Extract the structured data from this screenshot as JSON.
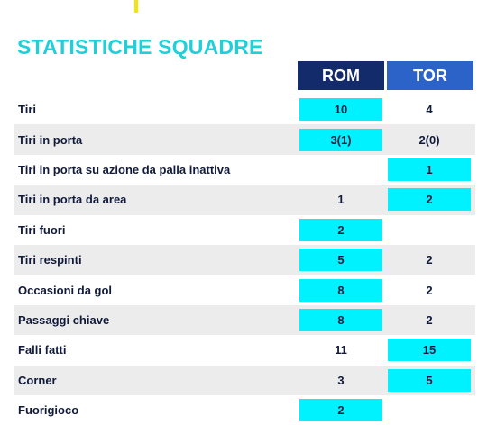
{
  "title": "STATISTICHE SQUADRE",
  "teams": {
    "home": "ROM",
    "away": "TOR"
  },
  "colors": {
    "title": "#1fd0d8",
    "home_header": "#132a6b",
    "away_header": "#2b63c9",
    "highlight": "#00f1ff",
    "accent": "#f5e30f",
    "row_alt": "#ececec"
  },
  "rows": [
    {
      "label": "Tiri",
      "home": "10",
      "away": "4",
      "leader": "home"
    },
    {
      "label": "Tiri in porta",
      "home": "3(1)",
      "away": "2(0)",
      "leader": "home"
    },
    {
      "label": "Tiri in porta su azione da palla inattiva",
      "home": "",
      "away": "1",
      "leader": "away"
    },
    {
      "label": "Tiri in porta da area",
      "home": "1",
      "away": "2",
      "leader": "away"
    },
    {
      "label": "Tiri fuori",
      "home": "2",
      "away": "",
      "leader": "home"
    },
    {
      "label": "Tiri respinti",
      "home": "5",
      "away": "2",
      "leader": "home"
    },
    {
      "label": "Occasioni da gol",
      "home": "8",
      "away": "2",
      "leader": "home"
    },
    {
      "label": "Passaggi chiave",
      "home": "8",
      "away": "2",
      "leader": "home"
    },
    {
      "label": "Falli fatti",
      "home": "11",
      "away": "15",
      "leader": "away"
    },
    {
      "label": "Corner",
      "home": "3",
      "away": "5",
      "leader": "away"
    },
    {
      "label": "Fuorigioco",
      "home": "2",
      "away": "",
      "leader": "home"
    }
  ]
}
